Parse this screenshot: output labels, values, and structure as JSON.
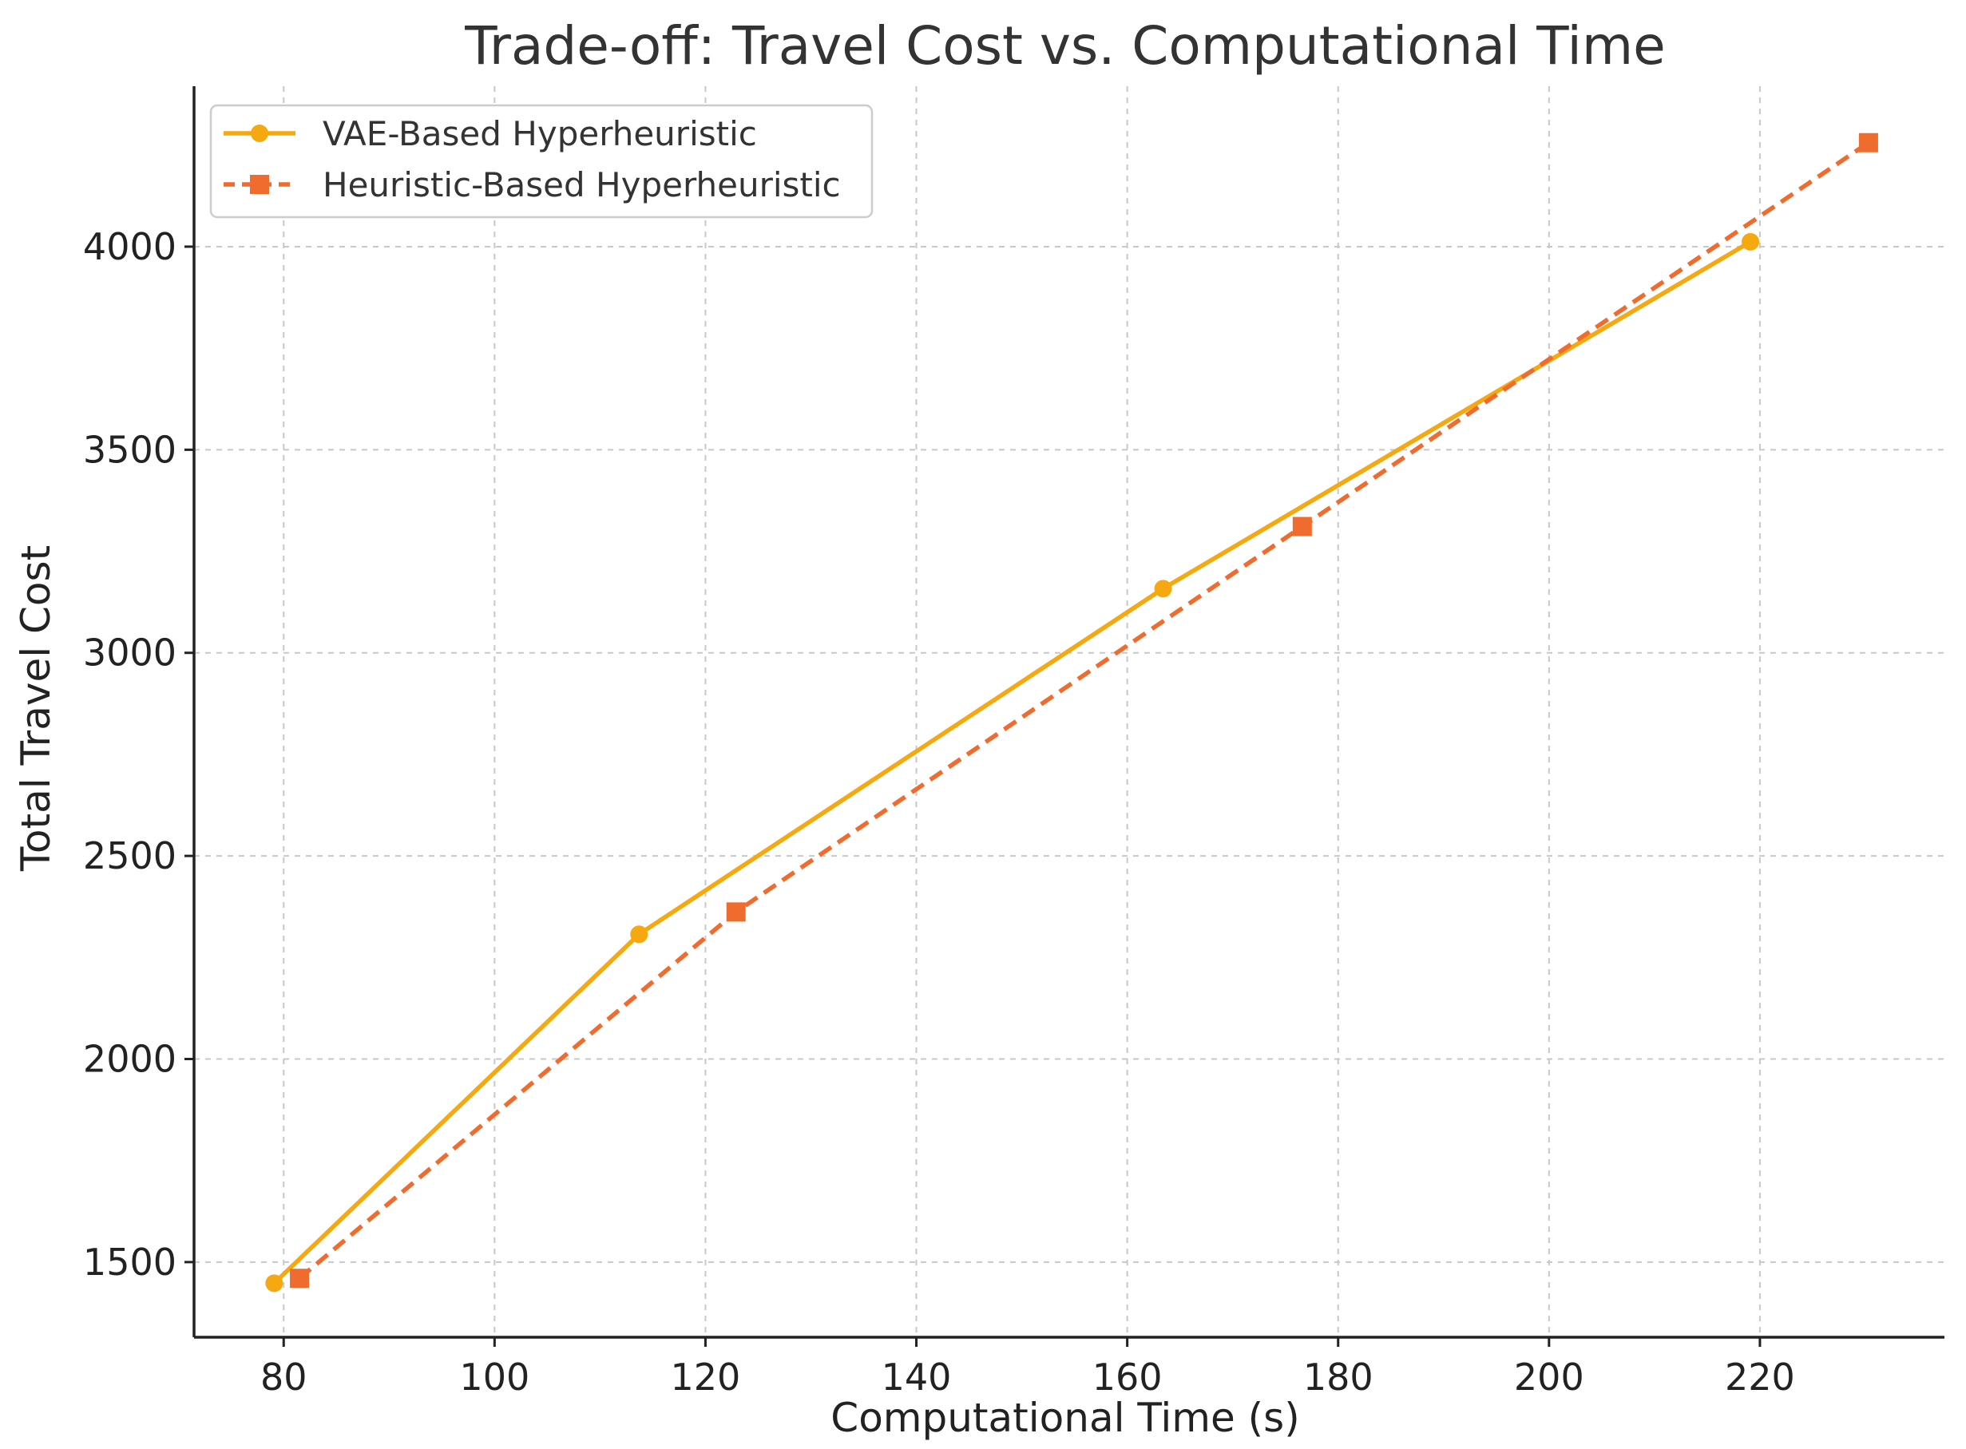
{
  "chart_data": {
    "type": "line",
    "title": "Trade-off: Travel Cost vs. Computational Time",
    "xlabel": "Computational Time (s)",
    "ylabel": "Total Travel Cost",
    "xlim": [
      71.5,
      237.5
    ],
    "ylim": [
      1315,
      4395
    ],
    "xticks": [
      80,
      100,
      120,
      140,
      160,
      180,
      200,
      220
    ],
    "yticks": [
      1500,
      2000,
      2500,
      3000,
      3500,
      4000
    ],
    "grid": true,
    "legend_position": "top-left",
    "series": [
      {
        "name": "VAE-Based Hyperheuristic",
        "color": "#F5A80F",
        "line_style": "solid",
        "marker": "circle",
        "points": [
          {
            "x": 79.1,
            "y": 1448
          },
          {
            "x": 113.7,
            "y": 2307
          },
          {
            "x": 163.4,
            "y": 3158
          },
          {
            "x": 219.1,
            "y": 4012
          }
        ]
      },
      {
        "name": "Heuristic-Based Hyperheuristic",
        "color": "#EF6C2E",
        "line_style": "dashed",
        "marker": "square",
        "points": [
          {
            "x": 81.5,
            "y": 1460
          },
          {
            "x": 122.9,
            "y": 2362
          },
          {
            "x": 176.6,
            "y": 3311
          },
          {
            "x": 230.3,
            "y": 4256
          }
        ]
      }
    ]
  }
}
